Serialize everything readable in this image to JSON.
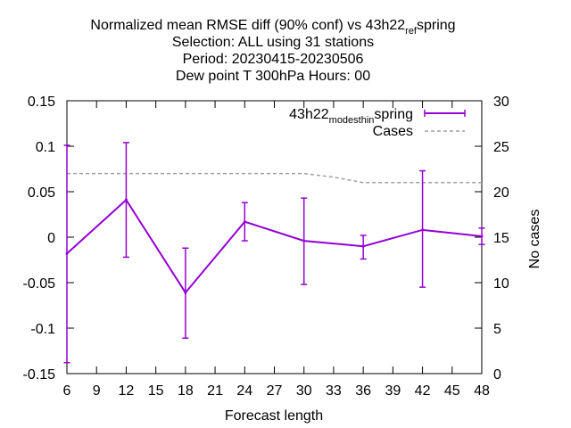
{
  "chart_data": {
    "type": "line",
    "title_lines": [
      "Normalized mean RMSE diff (90% conf) vs 43h22_ref_spring",
      "Selection: ALL using    31 stations",
      "Period: 20230415-20230506",
      "Dew point T 300hPa   Hours:  00"
    ],
    "xlabel": "Forecast length",
    "ylabel": "",
    "y2label": "No cases",
    "xlim": [
      6,
      48
    ],
    "ylim": [
      -0.15,
      0.15
    ],
    "y2lim": [
      0,
      30
    ],
    "xticks": [
      "6",
      "9",
      "12",
      "15",
      "18",
      "21",
      "24",
      "27",
      "30",
      "33",
      "36",
      "39",
      "42",
      "45",
      "48"
    ],
    "yticks": [
      "0.15",
      "0.1",
      "0.05",
      "0",
      "-0.05",
      "-0.1",
      "-0.15"
    ],
    "y2ticks": [
      "30",
      "25",
      "20",
      "15",
      "10",
      "5",
      "0"
    ],
    "series": [
      {
        "name": "43h22_modesthin_spring",
        "color": "#9400d3",
        "x": [
          6,
          12,
          18,
          24,
          30,
          36,
          42,
          48
        ],
        "y": [
          -0.018,
          0.041,
          -0.061,
          0.017,
          -0.004,
          -0.01,
          0.008,
          0.001
        ],
        "err_low": [
          -0.138,
          -0.022,
          -0.111,
          -0.004,
          -0.052,
          -0.024,
          -0.055,
          -0.008
        ],
        "err_high": [
          0.101,
          0.104,
          -0.012,
          0.038,
          0.043,
          0.002,
          0.073,
          0.01
        ]
      },
      {
        "name": "Cases",
        "color": "#a0a0a0",
        "axis": "y2",
        "x": [
          6,
          9,
          12,
          15,
          18,
          21,
          24,
          27,
          30,
          33,
          36,
          39,
          42,
          45,
          48
        ],
        "y": [
          22,
          22,
          22,
          22,
          22,
          22,
          22,
          22,
          22,
          21.6,
          21,
          21,
          21,
          21,
          21
        ]
      }
    ],
    "legend_position": "top-right",
    "grid": false
  }
}
